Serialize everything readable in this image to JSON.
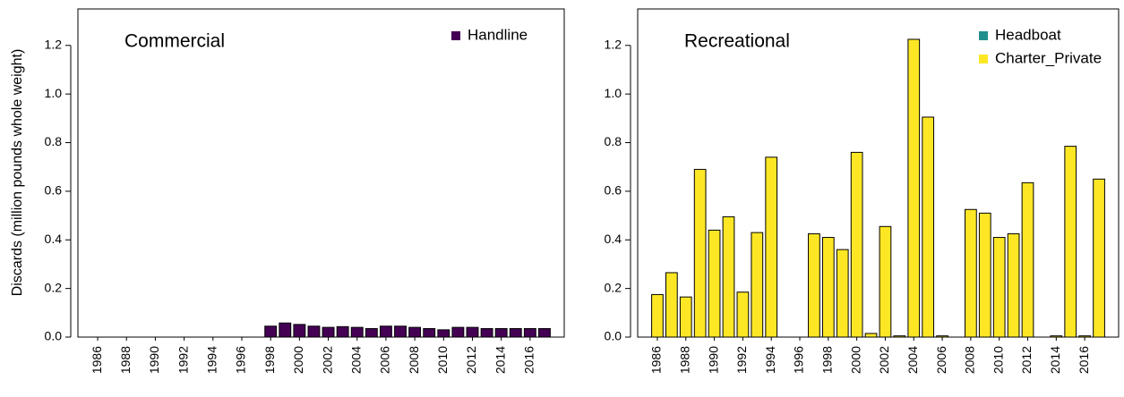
{
  "chart_data": [
    {
      "type": "bar",
      "title": "Commercial",
      "y_label": "Discards (million pounds whole weight)",
      "categories": [
        "1986",
        null,
        "1988",
        null,
        "1990",
        null,
        "1992",
        null,
        "1994",
        null,
        "1996",
        null,
        "1998",
        null,
        "2000",
        null,
        "2002",
        null,
        "2004",
        null,
        "2006",
        null,
        "2008",
        null,
        "2010",
        null,
        "2012",
        null,
        "2014",
        null,
        "2016",
        null
      ],
      "series": [
        {
          "name": "Handline",
          "color": "#440154",
          "values": [
            0,
            0,
            0,
            0,
            0,
            0,
            0,
            0,
            0,
            0,
            0,
            0,
            0.045,
            0.058,
            0.052,
            0.045,
            0.04,
            0.043,
            0.04,
            0.035,
            0.045,
            0.045,
            0.04,
            0.035,
            0.03,
            0.04,
            0.04,
            0.035,
            0.035,
            0.035,
            0.035,
            0.035
          ]
        }
      ],
      "ylim": [
        0,
        1.35
      ],
      "yticks": [
        {
          "value": 0,
          "label": "0.0"
        },
        {
          "value": 0.2,
          "label": "0.2"
        },
        {
          "value": 0.4,
          "label": "0.4"
        },
        {
          "value": 0.6,
          "label": "0.6"
        },
        {
          "value": 0.8,
          "label": "0.8"
        },
        {
          "value": 1,
          "label": "1.0"
        },
        {
          "value": 1.2,
          "label": "1.2"
        }
      ],
      "stacked": true
    },
    {
      "type": "bar",
      "title": "Recreational",
      "categories": [
        "1986",
        null,
        "1988",
        null,
        "1990",
        null,
        "1992",
        null,
        "1994",
        null,
        "1996",
        null,
        "1998",
        null,
        "2000",
        null,
        "2002",
        null,
        "2004",
        null,
        "2006",
        null,
        "2008",
        null,
        "2010",
        null,
        "2012",
        null,
        "2014",
        null,
        "2016",
        null
      ],
      "series": [
        {
          "name": "Headboat",
          "color": "#21908c",
          "values": [
            0,
            0,
            0,
            0,
            0,
            0,
            0,
            0,
            0,
            0,
            0,
            0,
            0,
            0,
            0,
            0,
            0,
            0,
            0,
            0,
            0,
            0,
            0,
            0,
            0,
            0,
            0,
            0,
            0,
            0,
            0,
            0
          ]
        },
        {
          "name": "Charter_Private",
          "color": "#fde725",
          "values": [
            0.175,
            0.265,
            0.165,
            0.69,
            0.44,
            0.495,
            0.185,
            0.43,
            0.74,
            0,
            0,
            0.425,
            0.41,
            0.36,
            0.76,
            0.015,
            0.455,
            0.005,
            1.225,
            0.905,
            0.005,
            0,
            0.525,
            0.51,
            0.41,
            0.425,
            0.635,
            0,
            0.005,
            0.785,
            0.005,
            0.65
          ]
        }
      ],
      "ylim": [
        0,
        1.35
      ],
      "yticks": [
        {
          "value": 0,
          "label": "0.0"
        },
        {
          "value": 0.2,
          "label": "0.2"
        },
        {
          "value": 0.4,
          "label": "0.4"
        },
        {
          "value": 0.6,
          "label": "0.6"
        },
        {
          "value": 0.8,
          "label": "0.8"
        },
        {
          "value": 1,
          "label": "1.0"
        },
        {
          "value": 1.2,
          "label": "1.2"
        }
      ],
      "stacked": true
    }
  ]
}
